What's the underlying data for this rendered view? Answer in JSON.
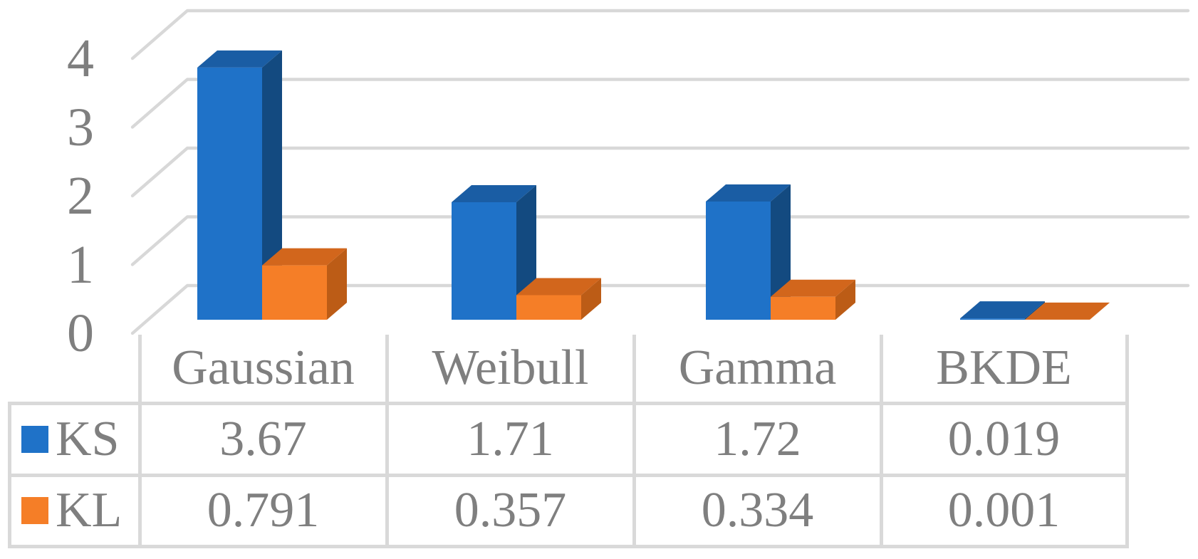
{
  "chart_data": {
    "type": "bar",
    "style": "3d-clustered-column-with-data-table",
    "title": "",
    "xlabel": "",
    "ylabel": "",
    "categories": [
      "Gaussian",
      "Weibull",
      "Gamma",
      "BKDE"
    ],
    "series": [
      {
        "name": "KS",
        "values": [
          3.67,
          1.71,
          1.72,
          0.019
        ],
        "display_values": [
          "3.67",
          "1.71",
          "1.72",
          "0.019"
        ],
        "color_front": "#1f72c8",
        "color_top": "#1a5da4",
        "color_side": "#134a80"
      },
      {
        "name": "KL",
        "values": [
          0.791,
          0.357,
          0.334,
          0.001
        ],
        "display_values": [
          "0.791",
          "0.357",
          "0.334",
          "0.001"
        ],
        "color_front": "#f57e27",
        "color_top": "#d2661c",
        "color_side": "#bc5c16"
      }
    ],
    "yticks": [
      "0",
      "1",
      "2",
      "3",
      "4"
    ],
    "ylim": [
      0,
      4
    ],
    "grid": true,
    "legend_position": "table-left-keys",
    "gridline_color": "#d8d8d8",
    "table_border_color": "#d9d9d9",
    "text_color": "#7f7f7f",
    "background": "#ffffff"
  }
}
